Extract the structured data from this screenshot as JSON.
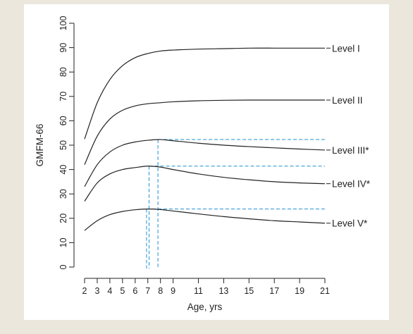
{
  "chart_data": {
    "type": "line",
    "title": "",
    "xlabel": "Age, yrs",
    "ylabel": "GMFM-66",
    "xlim": [
      2,
      21
    ],
    "ylim": [
      0,
      100
    ],
    "x_ticks": [
      2,
      3,
      4,
      5,
      6,
      7,
      8,
      9,
      11,
      13,
      15,
      17,
      19,
      21
    ],
    "y_ticks": [
      0,
      10,
      20,
      30,
      40,
      50,
      60,
      70,
      80,
      90,
      100
    ],
    "grid": false,
    "legend": "labels at right end of each curve",
    "colors": {
      "curve": "#222222",
      "guide": "#1e90d6",
      "axis": "#222222"
    },
    "series": [
      {
        "name": "Level I",
        "x": [
          2,
          3,
          4,
          5,
          6,
          7,
          8,
          9,
          11,
          13,
          15,
          17,
          19,
          21
        ],
        "y": [
          52.5,
          67.4,
          76.9,
          82.6,
          85.9,
          87.6,
          88.6,
          89.0,
          89.4,
          89.6,
          89.8,
          89.8,
          89.8,
          89.8
        ]
      },
      {
        "name": "Level II",
        "x": [
          2,
          3,
          4,
          5,
          6,
          7,
          8,
          9,
          11,
          13,
          15,
          17,
          19,
          21
        ],
        "y": [
          42.0,
          53.7,
          60.7,
          64.3,
          66.1,
          67.0,
          67.4,
          67.8,
          68.2,
          68.4,
          68.5,
          68.5,
          68.5,
          68.5
        ]
      },
      {
        "name": "Level III*",
        "x": [
          2,
          3,
          4,
          5,
          6,
          7,
          8,
          9,
          11,
          13,
          15,
          17,
          19,
          21
        ],
        "y": [
          33.0,
          42.0,
          47.2,
          50.0,
          51.3,
          52.0,
          52.3,
          51.8,
          50.8,
          50.0,
          49.4,
          48.9,
          48.4,
          48.0
        ]
      },
      {
        "name": "Level IV*",
        "x": [
          2,
          3,
          4,
          5,
          6,
          7,
          8,
          9,
          11,
          13,
          15,
          17,
          19,
          21
        ],
        "y": [
          27.0,
          34.5,
          38.2,
          40.0,
          40.8,
          41.4,
          41.0,
          40.0,
          38.2,
          36.8,
          35.8,
          35.0,
          34.5,
          34.2
        ]
      },
      {
        "name": "Level V*",
        "x": [
          2,
          3,
          4,
          5,
          6,
          7,
          8,
          9,
          11,
          13,
          15,
          17,
          19,
          21
        ],
        "y": [
          15.0,
          19.0,
          21.5,
          22.8,
          23.5,
          23.8,
          23.6,
          23.0,
          21.8,
          20.7,
          19.8,
          19.0,
          18.5,
          18.0
        ]
      }
    ],
    "guides": [
      {
        "x": 6.9,
        "y": 23.8
      },
      {
        "x": 7.1,
        "y": 41.4
      },
      {
        "x": 7.8,
        "y": 52.3
      }
    ]
  }
}
